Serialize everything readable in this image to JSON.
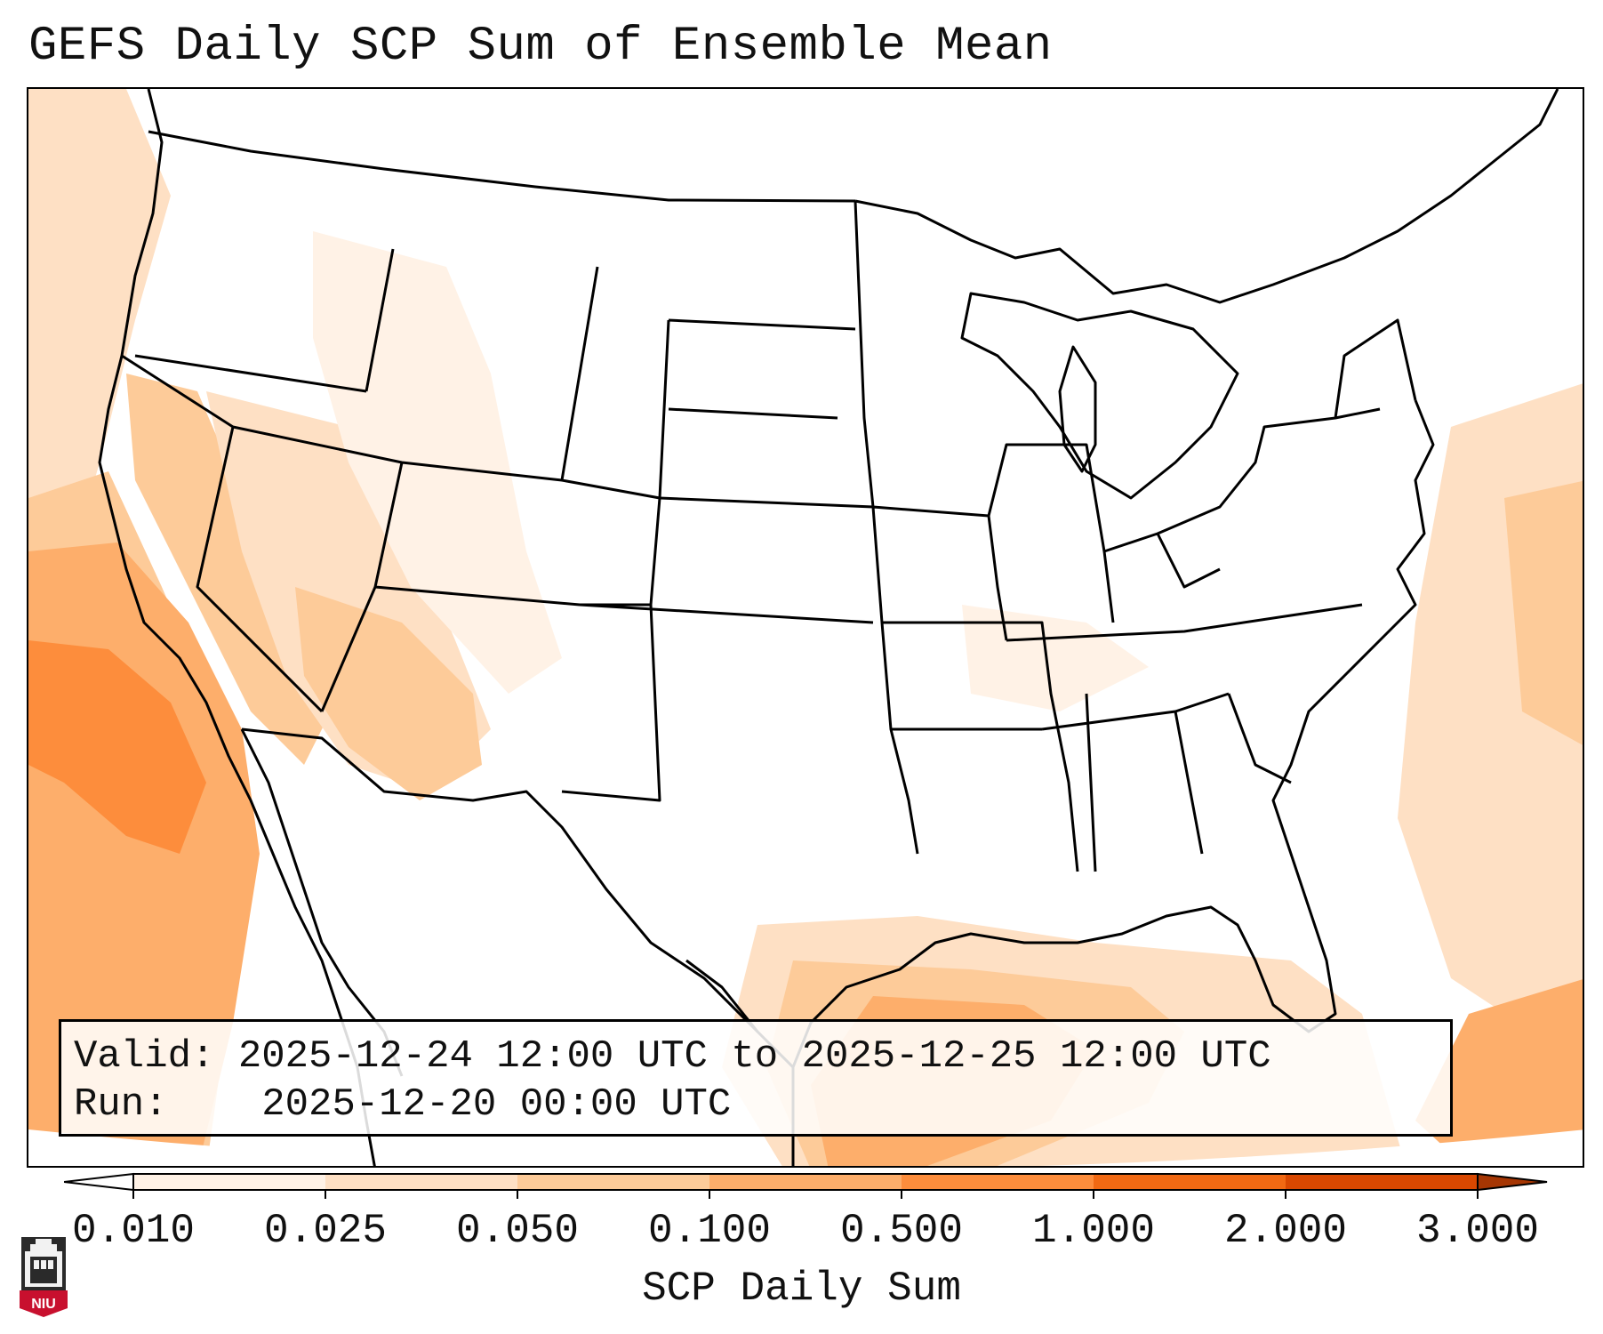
{
  "title": "GEFS Daily SCP Sum of Ensemble Mean",
  "info": {
    "valid_label": "Valid:",
    "valid_value": "2025-12-24 12:00 UTC to 2025-12-25 12:00 UTC",
    "run_label": "Run:",
    "run_value": "2025-12-20 00:00 UTC"
  },
  "colorbar": {
    "label": "SCP Daily Sum",
    "ticks": [
      "0.010",
      "0.025",
      "0.050",
      "0.100",
      "0.500",
      "1.000",
      "2.000",
      "3.000"
    ],
    "colors": [
      "#fff2e6",
      "#fee0c4",
      "#fdcb99",
      "#fdae6b",
      "#fd8d3c",
      "#f16913",
      "#d94801"
    ],
    "extend_color": "#a63603"
  },
  "logo": {
    "text": "NIU",
    "color": "#c8102e"
  },
  "map": {
    "region": "Continental United States",
    "field_colors": {
      "low": "#fff2e6",
      "light": "#fee0c4",
      "mid": "#fdcb99",
      "orange": "#fdae6b",
      "strong": "#fd8d3c"
    }
  }
}
